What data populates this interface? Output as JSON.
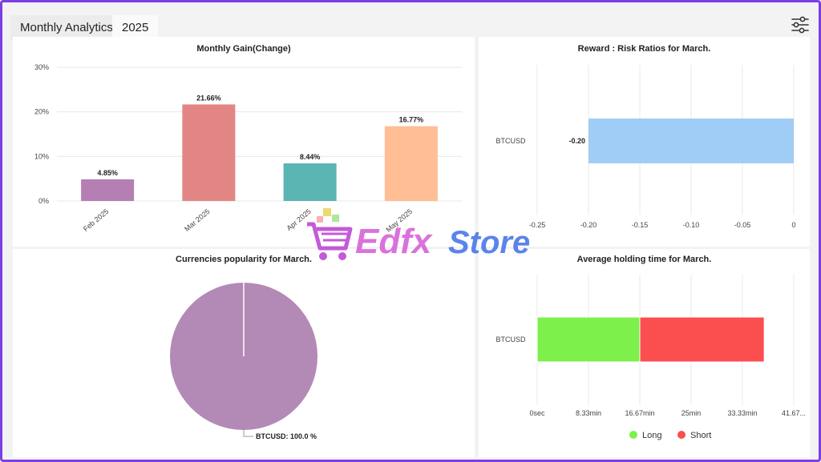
{
  "header": {
    "tab_active": "Monthly Analytics",
    "tab_year": "2025"
  },
  "watermark": {
    "text_a": "Edfx",
    "text_b": "Store"
  },
  "icons": {
    "filter": "sliders-icon",
    "cart": "cart-icon"
  },
  "chart_data": [
    {
      "type": "bar",
      "title": "Monthly Gain(Change)",
      "categories": [
        "Feb 2025",
        "Mar 2025",
        "Apr 2025",
        "May 2025"
      ],
      "values": [
        4.85,
        21.66,
        8.44,
        16.77
      ],
      "value_labels": [
        "4.85%",
        "21.66%",
        "8.44%",
        "16.77%"
      ],
      "colors": [
        "#b57fb3",
        "#e38585",
        "#5bb5b3",
        "#ffbe94"
      ],
      "yticks": [
        "0%",
        "10%",
        "20%",
        "30%"
      ],
      "ylim": [
        0,
        30
      ],
      "grid": true
    },
    {
      "type": "bar",
      "orientation": "horizontal",
      "title": "Reward : Risk Ratios for March.",
      "categories": [
        "BTCUSD"
      ],
      "values": [
        -0.2
      ],
      "value_labels": [
        "-0.20"
      ],
      "colors": [
        "#a0cdf5"
      ],
      "xticks": [
        "-0.25",
        "-0.20",
        "-0.15",
        "-0.10",
        "-0.05",
        "0"
      ],
      "xlim": [
        -0.25,
        0
      ],
      "grid": true
    },
    {
      "type": "pie",
      "title": "Currencies popularity for March.",
      "labels": [
        "BTCUSD"
      ],
      "values": [
        100.0
      ],
      "slice_label": "BTCUSD: 100.0 %",
      "colors": [
        "#b389b6"
      ]
    },
    {
      "type": "bar",
      "orientation": "horizontal",
      "stacked": true,
      "title": "Average holding time for March.",
      "categories": [
        "BTCUSD"
      ],
      "series": [
        {
          "name": "Long",
          "values": [
            16.67
          ],
          "color": "#7df04c"
        },
        {
          "name": "Short",
          "values": [
            20.2
          ],
          "color": "#fb4e4e"
        }
      ],
      "xticks": [
        "0sec",
        "8.33min",
        "16.67min",
        "25min",
        "33.33min",
        "41.67..."
      ],
      "xlim": [
        0,
        41.67
      ],
      "grid": true,
      "legend": "bottom-center"
    }
  ]
}
